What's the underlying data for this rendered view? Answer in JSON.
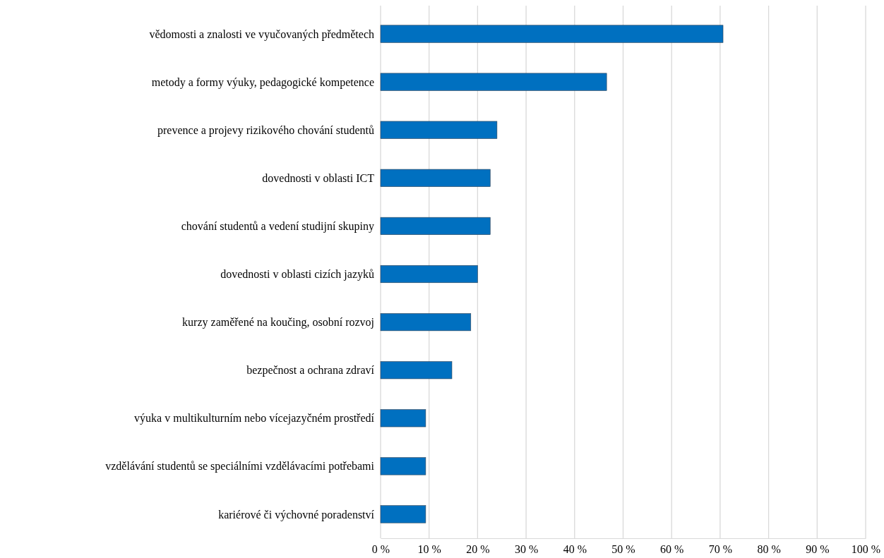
{
  "chart_data": {
    "type": "bar",
    "orientation": "horizontal",
    "categories": [
      "vědomosti a znalosti ve vyučovaných předmětech",
      "metody a formy výuky, pedagogické kompetence",
      "prevence a projevy rizikového chování studentů",
      "dovednosti v oblasti ICT",
      "chování studentů a vedení studijní skupiny",
      "dovednosti v oblasti cizích jazyků",
      "kurzy zaměřené na koučing, osobní rozvoj",
      "bezpečnost a ochrana zdraví",
      "výuka v multikulturním nebo vícejazyčném prostředí",
      "vzdělávání studentů se speciálními vzdělávacími potřebami",
      "kariérové či výchovné poradenství"
    ],
    "values": [
      70.6,
      46.6,
      24.0,
      22.6,
      22.6,
      20.0,
      18.6,
      14.7,
      9.3,
      9.3,
      9.3
    ],
    "color": "#0070c0",
    "xlim": [
      0,
      100
    ],
    "xticks": [
      {
        "value": 0,
        "label": "0 %"
      },
      {
        "value": 10,
        "label": "10 %"
      },
      {
        "value": 20,
        "label": "20 %"
      },
      {
        "value": 30,
        "label": "30 %"
      },
      {
        "value": 40,
        "label": "40 %"
      },
      {
        "value": 50,
        "label": "50 %"
      },
      {
        "value": 60,
        "label": "60 %"
      },
      {
        "value": 70,
        "label": "70 %"
      },
      {
        "value": 80,
        "label": "80 %"
      },
      {
        "value": 90,
        "label": "90 %"
      },
      {
        "value": 100,
        "label": "100 %"
      }
    ],
    "grid": "x"
  }
}
